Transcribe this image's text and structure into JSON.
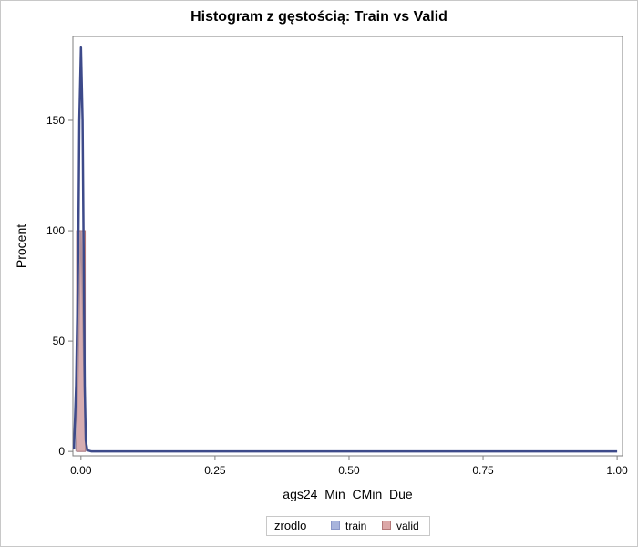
{
  "chart_data": {
    "type": "histogram",
    "title": "Histogram z gęstością: Train vs Valid",
    "xlabel": "ags24_Min_CMin_Due",
    "ylabel": "Procent",
    "xlim": [
      -0.015,
      1.01
    ],
    "ylim": [
      -2,
      188
    ],
    "x_ticks": [
      0,
      0.25,
      0.5,
      0.75,
      1.0
    ],
    "x_tick_labels": [
      "0.00",
      "0.25",
      "0.50",
      "0.75",
      "1.00"
    ],
    "y_ticks": [
      0,
      50,
      100,
      150
    ],
    "y_tick_labels": [
      "0",
      "50",
      "100",
      "150"
    ],
    "grid": false,
    "legend_placement": "bottom",
    "legend_title": "zrodlo",
    "series": [
      {
        "name": "train",
        "kind": "histogram",
        "fill": "#a8b4dc",
        "stroke": "#8a97c8",
        "bins": [
          {
            "x0": -0.008,
            "x1": 0.008,
            "value": 100
          }
        ]
      },
      {
        "name": "valid",
        "kind": "histogram",
        "fill": "#dca8a8",
        "stroke": "#b47878",
        "bins": [
          {
            "x0": -0.008,
            "x1": 0.008,
            "value": 100
          }
        ]
      },
      {
        "name": "train density",
        "kind": "density",
        "color": "#3d4a8a",
        "points": [
          [
            -0.013,
            1
          ],
          [
            -0.009,
            30
          ],
          [
            -0.005,
            90
          ],
          [
            -0.003,
            150
          ],
          [
            0.0,
            183
          ],
          [
            0.003,
            150
          ],
          [
            0.005,
            90
          ],
          [
            0.007,
            30
          ],
          [
            0.009,
            5
          ],
          [
            0.012,
            0.5
          ],
          [
            0.02,
            0
          ],
          [
            1.0,
            0
          ]
        ]
      },
      {
        "name": "valid density",
        "kind": "density",
        "color": "#b0909a",
        "points": [
          [
            -0.009,
            0
          ],
          [
            -0.005,
            40
          ],
          [
            -0.002,
            80
          ],
          [
            0.0,
            100
          ],
          [
            0.002,
            80
          ],
          [
            0.005,
            40
          ],
          [
            0.009,
            0
          ]
        ]
      }
    ]
  },
  "colors": {
    "axis": "#7f7f7f",
    "background": "#ffffff"
  }
}
